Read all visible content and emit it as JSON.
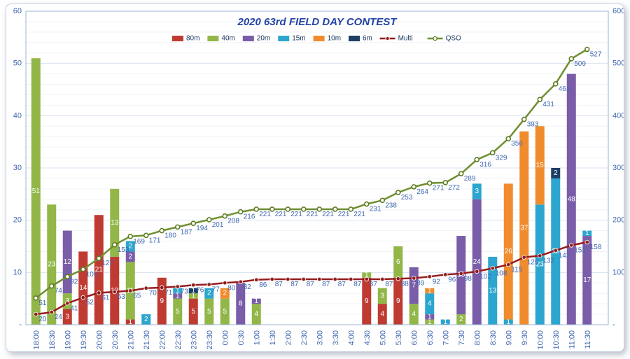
{
  "title": "2020 63rd FIELD DAY CONTEST",
  "colors": {
    "band_80m": "#bf3b32",
    "band_40m": "#92b748",
    "band_20m": "#7a5da8",
    "band_15m": "#2ca6ce",
    "band_10m": "#f08c2e",
    "band_6m": "#1e3f66",
    "multi_line": "#981b1e",
    "qso_line": "#6f8f2f",
    "data_label_blue": "#3f66b0",
    "axis_text_blue": "#3f66b0",
    "title_blue": "#2443a5",
    "legend_text": "#17375e",
    "grid_major": "#d9e2f0",
    "grid_minor": "#eff3f9",
    "plot_border": "#9bb7d4",
    "bar_label_white": "#ffffff"
  },
  "chart_data": {
    "type": "bar+line combo (stacked bars on left axis, cumulative lines on right axis)",
    "title": "2020 63rd FIELD DAY CONTEST",
    "categories": [
      "18:00",
      "18:30",
      "19:00",
      "19:30",
      "20:00",
      "20:30",
      "21:00",
      "21:30",
      "22:00",
      "22:30",
      "23:00",
      "23:30",
      "0:00",
      "0:30",
      "1:00",
      "1:30",
      "2:00",
      "2:30",
      "3:00",
      "3:30",
      "4:00",
      "4:30",
      "5:00",
      "5:30",
      "6:00",
      "6:30",
      "7:00",
      "7:30",
      "8:00",
      "8:30",
      "9:00",
      "9:30",
      "10:00",
      "10:30",
      "11:00",
      "11:30"
    ],
    "left_axis": {
      "min": 0,
      "max": 60,
      "ticks": [
        "60",
        "50",
        "40",
        "30",
        "20",
        "10",
        "-"
      ]
    },
    "right_axis": {
      "min": 0,
      "max": 600,
      "ticks": [
        "600",
        "500",
        "400",
        "300",
        "200",
        "100",
        "-"
      ]
    },
    "legend_position": "top-center",
    "grid": "horizontal only",
    "series": [
      {
        "name": "80m",
        "type": "bar",
        "axis": "left",
        "color": "#bf3b32",
        "values": [
          0,
          0,
          3,
          14,
          21,
          13,
          1,
          0,
          9,
          0,
          5,
          0,
          0,
          0,
          0,
          0,
          0,
          0,
          0,
          0,
          0,
          9,
          4,
          9,
          0,
          0,
          0,
          0,
          0,
          0,
          0,
          0,
          0,
          0,
          0,
          0
        ]
      },
      {
        "name": "40m",
        "type": "bar",
        "axis": "left",
        "color": "#92b748",
        "values": [
          51,
          23,
          3,
          0,
          0,
          13,
          11,
          0,
          0,
          5,
          1,
          5,
          5,
          0,
          4,
          0,
          0,
          0,
          0,
          0,
          0,
          1,
          3,
          6,
          4,
          1,
          0,
          2,
          0,
          0,
          0,
          0,
          0,
          0,
          0,
          0
        ]
      },
      {
        "name": "20m",
        "type": "bar",
        "axis": "left",
        "color": "#7a5da8",
        "values": [
          0,
          0,
          12,
          0,
          0,
          0,
          2,
          0,
          0,
          1,
          0,
          0,
          0,
          8,
          1,
          0,
          0,
          0,
          0,
          0,
          0,
          0,
          0,
          0,
          7,
          1,
          0,
          15,
          24,
          0,
          0,
          0,
          0,
          0,
          48,
          17
        ]
      },
      {
        "name": "15m",
        "type": "bar",
        "axis": "left",
        "color": "#2ca6ce",
        "values": [
          0,
          0,
          0,
          0,
          0,
          0,
          2,
          2,
          0,
          1,
          0,
          2,
          0,
          0,
          0,
          0,
          0,
          0,
          0,
          0,
          0,
          0,
          0,
          0,
          0,
          4,
          1,
          0,
          3,
          13,
          1,
          0,
          23,
          28,
          0,
          1
        ]
      },
      {
        "name": "10m",
        "type": "bar",
        "axis": "left",
        "color": "#f08c2e",
        "values": [
          0,
          0,
          0,
          0,
          0,
          0,
          0,
          0,
          0,
          0,
          0,
          0,
          2,
          0,
          0,
          0,
          0,
          0,
          0,
          0,
          0,
          0,
          0,
          0,
          0,
          1,
          0,
          0,
          0,
          0,
          26,
          37,
          15,
          0,
          0,
          0
        ]
      },
      {
        "name": "6m",
        "type": "bar",
        "axis": "left",
        "color": "#1e3f66",
        "values": [
          0,
          0,
          0,
          0,
          0,
          0,
          0,
          0,
          0,
          0,
          1,
          0,
          0,
          0,
          0,
          0,
          0,
          0,
          0,
          0,
          0,
          0,
          0,
          0,
          0,
          0,
          0,
          0,
          0,
          0,
          0,
          0,
          0,
          2,
          0,
          0
        ]
      },
      {
        "name": "Multi",
        "type": "line",
        "axis": "right",
        "color": "#981b1e",
        "values": [
          20,
          24,
          41,
          52,
          61,
          63,
          65,
          70,
          71,
          73,
          76,
          77,
          80,
          82,
          86,
          87,
          87,
          87,
          87,
          87,
          87,
          87,
          87,
          88,
          89,
          92,
          96,
          98,
          102,
          108,
          115,
          129,
          132,
          142,
          152,
          158
        ]
      },
      {
        "name": "QSO",
        "type": "line",
        "axis": "right",
        "color": "#6f8f2f",
        "values": [
          51,
          74,
          92,
          106,
          127,
          153,
          169,
          171,
          180,
          187,
          194,
          201,
          208,
          216,
          221,
          221,
          221,
          221,
          221,
          221,
          221,
          231,
          238,
          253,
          264,
          271,
          272,
          289,
          316,
          329,
          356,
          393,
          431,
          461,
          509,
          527
        ]
      }
    ]
  }
}
